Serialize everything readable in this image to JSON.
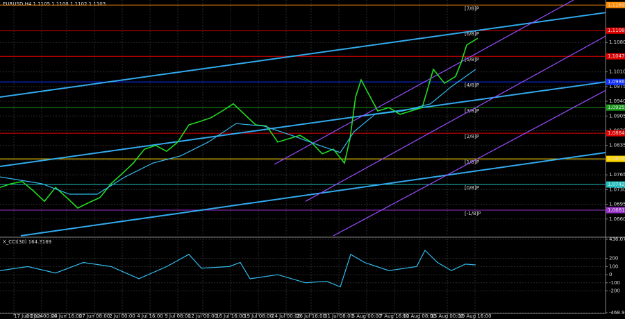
{
  "chart_data": [
    {
      "type": "line",
      "title": "EURUSD,H4 1.1105 1.1108 1.1102 1.1103",
      "xlim": [
        0,
        218
      ],
      "xticks": [
        {
          "value": 5,
          "label": "17 Jun 2024"
        },
        {
          "value": 15,
          "label": "20 Jun 00:00"
        },
        {
          "value": 24,
          "label": "24 Jun 16:00"
        },
        {
          "value": 34,
          "label": "27 Jun 08:00"
        },
        {
          "value": 44,
          "label": "2 Jul 00:00"
        },
        {
          "value": 54,
          "label": "4 Jul 16:00"
        },
        {
          "value": 64,
          "label": "9 Jul 08:00"
        },
        {
          "value": 73,
          "label": "12 Jul 00:00"
        },
        {
          "value": 83,
          "label": "16 Jul 16:00"
        },
        {
          "value": 93,
          "label": "19 Jul 08:00"
        },
        {
          "value": 103,
          "label": "24 Jul 00:00"
        },
        {
          "value": 112,
          "label": "26 Jul 16:00"
        },
        {
          "value": 122,
          "label": "31 Jul 08:00"
        },
        {
          "value": 132,
          "label": "5 Aug 00:00"
        },
        {
          "value": 142,
          "label": "7 Aug 16:00"
        },
        {
          "value": 151,
          "label": "12 Aug 08:00"
        },
        {
          "value": 161,
          "label": "15 Aug 00:00"
        },
        {
          "value": 171,
          "label": "19 Aug 16:00"
        }
      ],
      "ylim": [
        1.062,
        1.1181
      ],
      "yticks": [
        {
          "value": 1.066,
          "label": "1.0660"
        },
        1.0695,
        {
          "value": 1.073,
          "label": "1.0730"
        },
        1.0765,
        {
          "value": 1.08,
          "label": "1.0800"
        },
        1.0835,
        {
          "value": 1.087,
          "label": "1.0870"
        },
        1.0905,
        {
          "value": 1.094,
          "label": "1.0940"
        },
        1.0975,
        {
          "value": 1.101,
          "label": "1.1010"
        },
        {
          "value": 1.108,
          "label": "1.1080"
        }
      ],
      "grid": true,
      "series": [
        {
          "color": "#22dd22",
          "x": [
            0,
            4,
            8,
            12,
            16,
            20,
            24,
            28,
            32,
            36,
            40,
            44,
            48,
            52,
            56,
            60,
            64,
            68,
            72,
            76,
            80,
            84,
            88,
            92,
            96,
            100,
            104,
            108,
            112,
            116,
            120,
            124,
            126,
            128,
            130,
            132,
            136,
            140,
            144,
            148,
            152,
            156,
            160,
            164,
            166,
            168,
            172
          ],
          "values": [
            1.0735,
            1.0744,
            1.0749,
            1.0727,
            1.0702,
            1.0735,
            1.0711,
            1.0686,
            1.0699,
            1.0711,
            1.0744,
            1.0768,
            1.0793,
            1.0826,
            1.0835,
            1.0821,
            1.0843,
            1.0884,
            1.0892,
            1.0901,
            1.0917,
            1.0934,
            1.0909,
            1.0884,
            1.0881,
            1.0843,
            1.0851,
            1.0859,
            1.0843,
            1.0815,
            1.0826,
            1.0793,
            1.0851,
            1.095,
            1.0991,
            1.0966,
            1.0917,
            1.0925,
            1.0909,
            1.0917,
            1.0925,
            1.1016,
            1.0983,
            1.0999,
            1.1032,
            1.1074,
            1.109
          ]
        },
        {
          "color": "#33bbee",
          "x": [
            0,
            15,
            25,
            35,
            45,
            55,
            65,
            75,
            85,
            95,
            105,
            115,
            122.5,
            127.5,
            135,
            145,
            155,
            162.5,
            171.25
          ],
          "values": [
            1.076,
            1.0744,
            1.0719,
            1.0719,
            1.076,
            1.0793,
            1.081,
            1.0843,
            1.0887,
            1.0881,
            1.0859,
            1.0835,
            1.0818,
            1.0868,
            1.0909,
            1.0917,
            1.0934,
            1.0975,
            1.1016
          ]
        }
      ],
      "levels": [
        {
          "label": "[7/8]P",
          "value": 1.1169,
          "value_label": "1.1169",
          "color": "#ff8c00"
        },
        {
          "label": "[6/8]P",
          "value": 1.1108,
          "value_label": "1.1108",
          "color": "#e00000"
        },
        {
          "label": "[5/8]P",
          "value": 1.1047,
          "value_label": "1.1047",
          "color": "#e00000"
        },
        {
          "label": "[4/8]P",
          "value": 1.0986,
          "value_label": "1.0986",
          "color": "#1030ff"
        },
        {
          "label": "[3/8]P",
          "value": 1.0925,
          "value_label": "1.0925",
          "color": "#1a9a1a"
        },
        {
          "label": "[2/8]P",
          "value": 1.0864,
          "value_label": "1.0864",
          "color": "#e00000"
        },
        {
          "label": "[1/8]P",
          "value": 1.0803,
          "value_label": "1.0803",
          "color": "#ffd700"
        },
        {
          "label": "[0/8]P",
          "value": 1.0742,
          "value_label": "1.0742",
          "color": "#20c0c0"
        },
        {
          "label": "[-1/8]P",
          "value": 1.0681,
          "value_label": "1.0681",
          "color": "#9932cc"
        }
      ],
      "trendlines": [
        {
          "color": "#33aaee",
          "x": [
            0,
            218
          ],
          "values": [
            1.095,
            1.1151
          ]
        },
        {
          "color": "#33aaee",
          "x": [
            0,
            218
          ],
          "values": [
            1.0785,
            1.0986
          ]
        },
        {
          "color": "#33aaee",
          "x": [
            7.5,
            218
          ],
          "values": [
            1.062,
            1.0818
          ]
        },
        {
          "color": "#9b4dff",
          "x": [
            98.75,
            206.5
          ],
          "values": [
            1.079,
            1.1181
          ]
        },
        {
          "color": "#9b4dff",
          "x": [
            110,
            218
          ],
          "values": [
            1.0702,
            1.1095
          ]
        },
        {
          "color": "#9b4dff",
          "x": [
            120,
            218
          ],
          "values": [
            1.062,
            1.0966
          ]
        }
      ]
    },
    {
      "type": "line",
      "title": "X_CCI(30) 164.3169",
      "xlim": [
        0,
        218
      ],
      "ylim": [
        -468.9288,
        436.0738
      ],
      "yticks": [
        -468.9288,
        -200,
        -100,
        0,
        100,
        200,
        436.0738
      ],
      "series": [
        {
          "color": "#33bbee",
          "x": [
            0,
            10,
            20,
            30,
            40,
            50,
            60,
            68,
            72.5,
            82.5,
            86.5,
            90,
            100,
            110,
            117.5,
            122.5,
            126.25,
            131.25,
            140,
            150,
            153,
            157.5,
            162.5,
            167.5,
            171.25
          ],
          "values": [
            50,
            100,
            20,
            150,
            100,
            -50,
            100,
            250,
            80,
            100,
            150,
            -50,
            0,
            -100,
            -80,
            -150,
            250,
            150,
            50,
            100,
            300,
            150,
            50,
            130,
            120
          ]
        }
      ]
    }
  ]
}
